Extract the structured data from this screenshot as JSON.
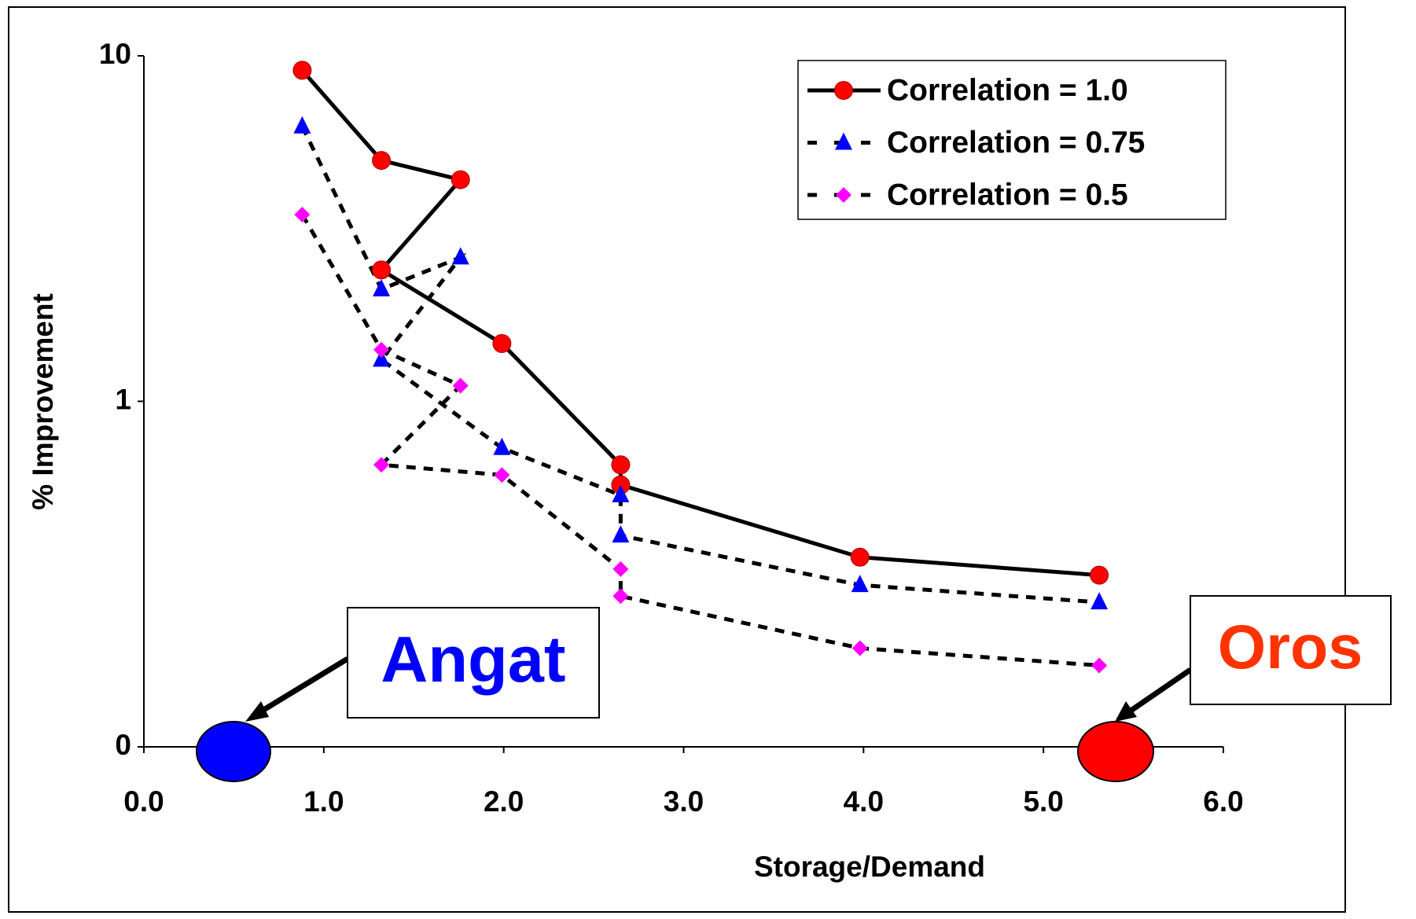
{
  "chart_data": {
    "type": "line",
    "x_label": "Storage/Demand",
    "y_label": "% Improvement",
    "x": [
      0.88,
      1.32,
      1.76,
      1.32,
      1.99,
      2.65,
      2.65,
      3.98,
      5.31
    ],
    "series": [
      {
        "name": "Correlation = 1.0",
        "color": "#ff0000",
        "line_color": "#000000",
        "line_style": "solid",
        "marker": "circle",
        "values": [
          9.08,
          4.98,
          4.38,
          2.4,
          1.47,
          0.655,
          0.573,
          0.354,
          0.314
        ]
      },
      {
        "name": "Correlation = 0.75",
        "color": "#0000ff",
        "line_color": "#000000",
        "line_style": "dashed",
        "marker": "triangle",
        "values": [
          6.25,
          2.11,
          2.61,
          1.32,
          0.733,
          0.535,
          0.409,
          0.294,
          0.262
        ]
      },
      {
        "name": "Correlation = 0.5",
        "color": "#ff00ff",
        "line_color": "#000000",
        "line_style": "dashed",
        "marker": "diamond",
        "values": [
          3.47,
          1.41,
          1.11,
          0.655,
          0.612,
          0.327,
          0.273,
          0.193,
          0.172
        ]
      }
    ],
    "xlim": [
      0,
      6
    ],
    "xticks": [
      {
        "value": 0,
        "label": "0.0"
      },
      {
        "value": 1,
        "label": "1.0"
      },
      {
        "value": 2,
        "label": "2.0"
      },
      {
        "value": 3,
        "label": "3.0"
      },
      {
        "value": 4,
        "label": "4.0"
      },
      {
        "value": 5,
        "label": "5.0"
      },
      {
        "value": 6,
        "label": "6.0"
      }
    ],
    "ylim": [
      0.1,
      10
    ],
    "yticks": [
      {
        "value": 0.1,
        "label": "0"
      },
      1,
      10
    ],
    "y_scale": "log",
    "legend": "upper right",
    "annotations": [
      {
        "text": "Angat",
        "color": "#0000ff"
      },
      {
        "text": "Oros",
        "color": "#ff3300"
      }
    ]
  }
}
